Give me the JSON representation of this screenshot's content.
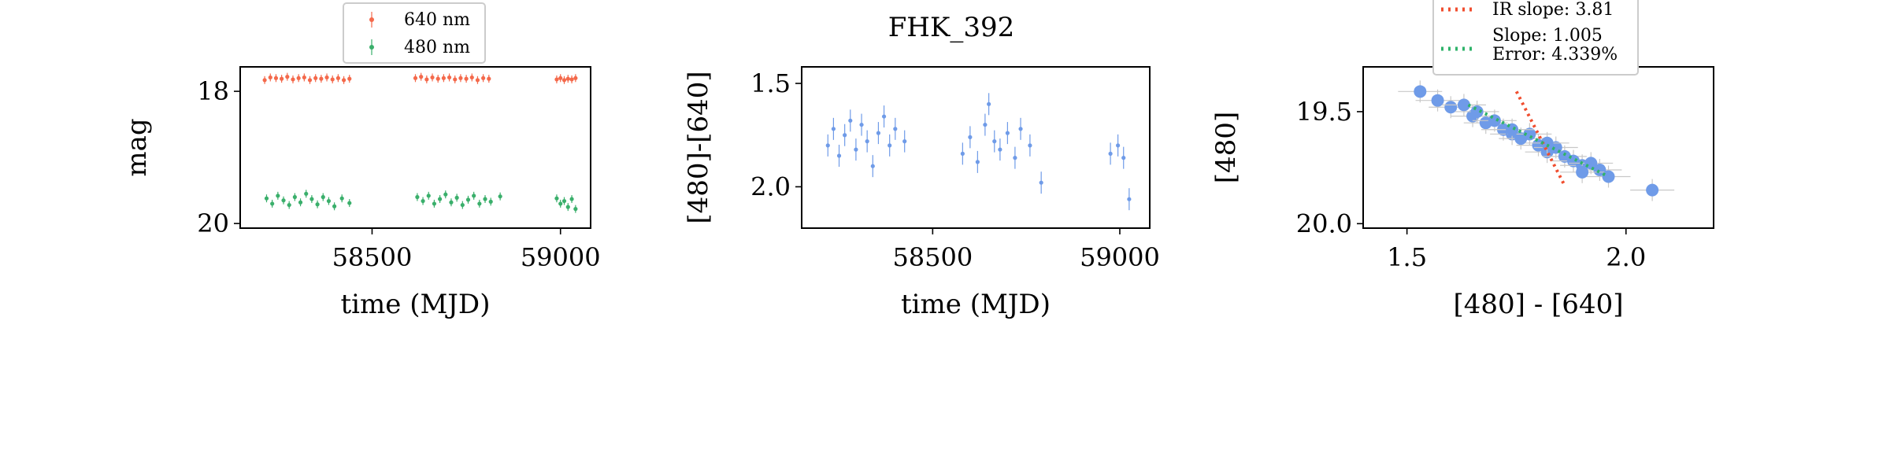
{
  "figure": {
    "suptitle": "FHK_392"
  },
  "colors": {
    "red_640": "#f4694b",
    "green_480": "#3aaf6b",
    "blue_color": "#6f9be8",
    "fit_green": "#2fb36a",
    "ir_red": "#f04e2f",
    "errbar_gray": "#c8c8c8"
  },
  "chart_data": [
    {
      "type": "scatter",
      "title": "",
      "xlabel": "time (MJD)",
      "ylabel": "mag",
      "xlim": [
        58150,
        59080
      ],
      "ylim": [
        20.07,
        17.63
      ],
      "y_inverted": true,
      "xticks": [
        58500,
        59000
      ],
      "xtick_labels": [
        "58500",
        "59000"
      ],
      "yticks": [
        18,
        20
      ],
      "ytick_labels": [
        "18",
        "20"
      ],
      "legend_position": "top-center-outside",
      "series": [
        {
          "name": "640 nm",
          "color": "#f4694b",
          "x": [
            58215,
            58230,
            58245,
            58260,
            58275,
            58290,
            58305,
            58320,
            58335,
            58350,
            58365,
            58380,
            58395,
            58410,
            58425,
            58440,
            58615,
            58630,
            58645,
            58660,
            58675,
            58690,
            58705,
            58720,
            58735,
            58750,
            58765,
            58780,
            58795,
            58810,
            58990,
            59000,
            59010,
            59020,
            59030,
            59040
          ],
          "y": [
            17.83,
            17.79,
            17.8,
            17.81,
            17.78,
            17.82,
            17.8,
            17.79,
            17.83,
            17.8,
            17.81,
            17.79,
            17.82,
            17.8,
            17.83,
            17.81,
            17.8,
            17.78,
            17.82,
            17.79,
            17.81,
            17.8,
            17.79,
            17.82,
            17.8,
            17.81,
            17.79,
            17.83,
            17.8,
            17.81,
            17.82,
            17.8,
            17.83,
            17.81,
            17.82,
            17.8
          ]
        },
        {
          "name": "480 nm",
          "color": "#3aaf6b",
          "x": [
            58220,
            58235,
            58250,
            58265,
            58280,
            58295,
            58310,
            58325,
            58340,
            58355,
            58370,
            58385,
            58400,
            58420,
            58440,
            58620,
            58635,
            58650,
            58665,
            58680,
            58695,
            58710,
            58725,
            58740,
            58755,
            58770,
            58785,
            58800,
            58815,
            58840,
            58990,
            59000,
            59010,
            59020,
            59030,
            59040
          ],
          "y": [
            19.62,
            19.7,
            19.58,
            19.65,
            19.72,
            19.6,
            19.68,
            19.55,
            19.63,
            19.71,
            19.6,
            19.66,
            19.74,
            19.62,
            19.69,
            19.6,
            19.66,
            19.58,
            19.7,
            19.63,
            19.56,
            19.68,
            19.61,
            19.72,
            19.64,
            19.58,
            19.7,
            19.63,
            19.67,
            19.59,
            19.62,
            19.7,
            19.66,
            19.75,
            19.63,
            19.78
          ]
        }
      ]
    },
    {
      "type": "scatter",
      "title": "",
      "xlabel": "time (MJD)",
      "ylabel": "[480]-[640]",
      "xlim": [
        58150,
        59080
      ],
      "ylim": [
        2.2,
        1.42
      ],
      "y_inverted": true,
      "xticks": [
        58500,
        59000
      ],
      "xtick_labels": [
        "58500",
        "59000"
      ],
      "yticks": [
        1.5,
        2.0
      ],
      "ytick_labels": [
        "1.5",
        "2.0"
      ],
      "series": [
        {
          "name": "",
          "color": "#6f9be8",
          "x": [
            58220,
            58235,
            58250,
            58265,
            58280,
            58295,
            58310,
            58325,
            58340,
            58355,
            58370,
            58385,
            58400,
            58425,
            58580,
            58600,
            58620,
            58640,
            58650,
            58665,
            58680,
            58700,
            58720,
            58735,
            58760,
            58790,
            58975,
            58995,
            59010,
            59025
          ],
          "y": [
            1.8,
            1.72,
            1.85,
            1.75,
            1.68,
            1.82,
            1.7,
            1.78,
            1.9,
            1.74,
            1.66,
            1.8,
            1.72,
            1.78,
            1.84,
            1.76,
            1.88,
            1.7,
            1.6,
            1.78,
            1.82,
            1.74,
            1.86,
            1.72,
            1.8,
            1.98,
            1.84,
            1.8,
            1.86,
            2.06
          ]
        }
      ]
    },
    {
      "type": "scatter",
      "title": "",
      "xlabel": "[480] - [640]",
      "ylabel": "[480]",
      "xlim": [
        1.4,
        2.2
      ],
      "ylim": [
        20.02,
        19.3
      ],
      "y_inverted": true,
      "xticks": [
        1.5,
        2.0
      ],
      "xtick_labels": [
        "1.5",
        "2.0"
      ],
      "yticks": [
        19.5,
        20.0
      ],
      "ytick_labels": [
        "19.5",
        "20.0"
      ],
      "legend_position": "top-center-outside",
      "series": [
        {
          "name": "",
          "color": "#6f9be8",
          "x": [
            1.53,
            1.57,
            1.6,
            1.63,
            1.65,
            1.68,
            1.7,
            1.72,
            1.74,
            1.76,
            1.78,
            1.8,
            1.82,
            1.84,
            1.86,
            1.88,
            1.9,
            1.92,
            1.94,
            1.96,
            2.06,
            1.66,
            1.74,
            1.82,
            1.9
          ],
          "y": [
            19.41,
            19.45,
            19.48,
            19.47,
            19.52,
            19.55,
            19.54,
            19.58,
            19.6,
            19.62,
            19.6,
            19.65,
            19.68,
            19.66,
            19.7,
            19.72,
            19.74,
            19.73,
            19.76,
            19.79,
            19.85,
            19.5,
            19.58,
            19.64,
            19.77
          ]
        }
      ],
      "lines": [
        {
          "name": "IR slope: 3.81",
          "style": "dotted",
          "color": "#f04e2f",
          "x": [
            1.75,
            1.86
          ],
          "y": [
            19.41,
            19.83
          ]
        },
        {
          "name": "Slope: 1.005\nError: 4.339%",
          "style": "dotted",
          "color": "#2fb36a",
          "x": [
            1.64,
            1.96
          ],
          "y": [
            19.47,
            19.79
          ]
        }
      ]
    }
  ]
}
